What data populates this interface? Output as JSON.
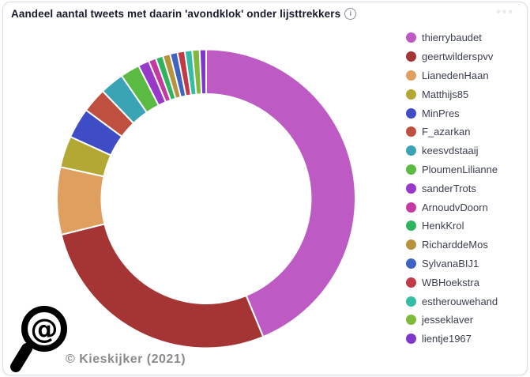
{
  "card": {
    "title": "Aandeel aantal tweets met daarin 'avondklok' onder lijsttrekkers",
    "info_icon": "i",
    "menu_icon": "•••",
    "source_credit": "© Kieskijker (2021)",
    "logo": "magnifier-with-at-symbol"
  },
  "colors": {
    "card_border": "#d8dce6",
    "title_text": "#171a2b",
    "legend_text": "#3b4050",
    "credit_text": "#8b8b8b",
    "slice_gap": "#ffffff"
  },
  "chart_data": {
    "type": "pie",
    "variant": "donut",
    "title": "Aandeel aantal tweets met daarin 'avondklok' onder lijsttrekkers",
    "legend_position": "right",
    "start_angle_deg": 0,
    "direction": "clockwise",
    "inner_radius_ratio": 0.705,
    "values_are": "percent_share_estimated_from_arc_angles",
    "series": [
      {
        "label": "thierrybaudet",
        "value": 43.8,
        "color": "#bd5ac4"
      },
      {
        "label": "geertwilderspvv",
        "value": 27.4,
        "color": "#a43534"
      },
      {
        "label": "LianedenHaan",
        "value": 7.3,
        "color": "#dfa05f"
      },
      {
        "label": "Matthijs85",
        "value": 3.4,
        "color": "#b3a834"
      },
      {
        "label": "MinPres",
        "value": 3.3,
        "color": "#3e4dc5"
      },
      {
        "label": "F_azarkan",
        "value": 2.7,
        "color": "#bf4f3f"
      },
      {
        "label": "keesvdstaaij",
        "value": 2.6,
        "color": "#3aa3b4"
      },
      {
        "label": "PloumenLilianne",
        "value": 2.1,
        "color": "#5aba41"
      },
      {
        "label": "sanderTrots",
        "value": 1.2,
        "color": "#9939ca"
      },
      {
        "label": "ArnoudvDoorn",
        "value": 0.8,
        "color": "#c33ba2"
      },
      {
        "label": "HenkKrol",
        "value": 0.8,
        "color": "#2fb45d"
      },
      {
        "label": "RicharddeMos",
        "value": 0.8,
        "color": "#b6923c"
      },
      {
        "label": "SylvanaBIJ1",
        "value": 0.8,
        "color": "#3f63c1"
      },
      {
        "label": "WBHoekstra",
        "value": 0.8,
        "color": "#c13a48"
      },
      {
        "label": "estherouwehand",
        "value": 0.8,
        "color": "#35bca4"
      },
      {
        "label": "jesseklaver",
        "value": 0.8,
        "color": "#80ba3d"
      },
      {
        "label": "lientje1967",
        "value": 0.7,
        "color": "#8037cc"
      }
    ]
  }
}
